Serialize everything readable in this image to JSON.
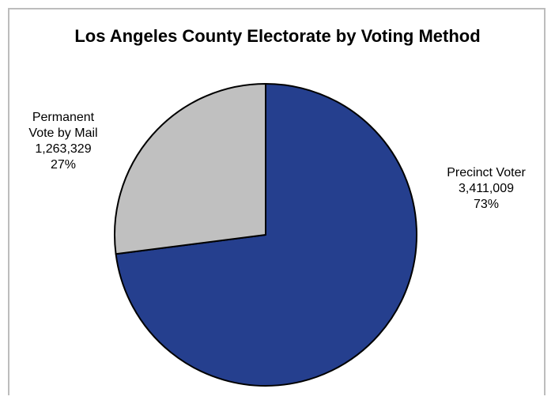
{
  "chart_data": {
    "type": "pie",
    "title": "Los Angeles County Electorate by Voting Method",
    "start_angle_deg": 0,
    "direction": "clockwise",
    "slices": [
      {
        "label_lines": [
          "Precinct Voter",
          "3,411,009",
          "73%"
        ],
        "value": 3411009,
        "percent": "73%",
        "color": "#253f8e"
      },
      {
        "label_lines": [
          "Permanent",
          "Vote by Mail",
          "1,263,329",
          "27%"
        ],
        "value": 1263329,
        "percent": "27%",
        "color": "#c0c0c0"
      }
    ],
    "legend": "none"
  }
}
